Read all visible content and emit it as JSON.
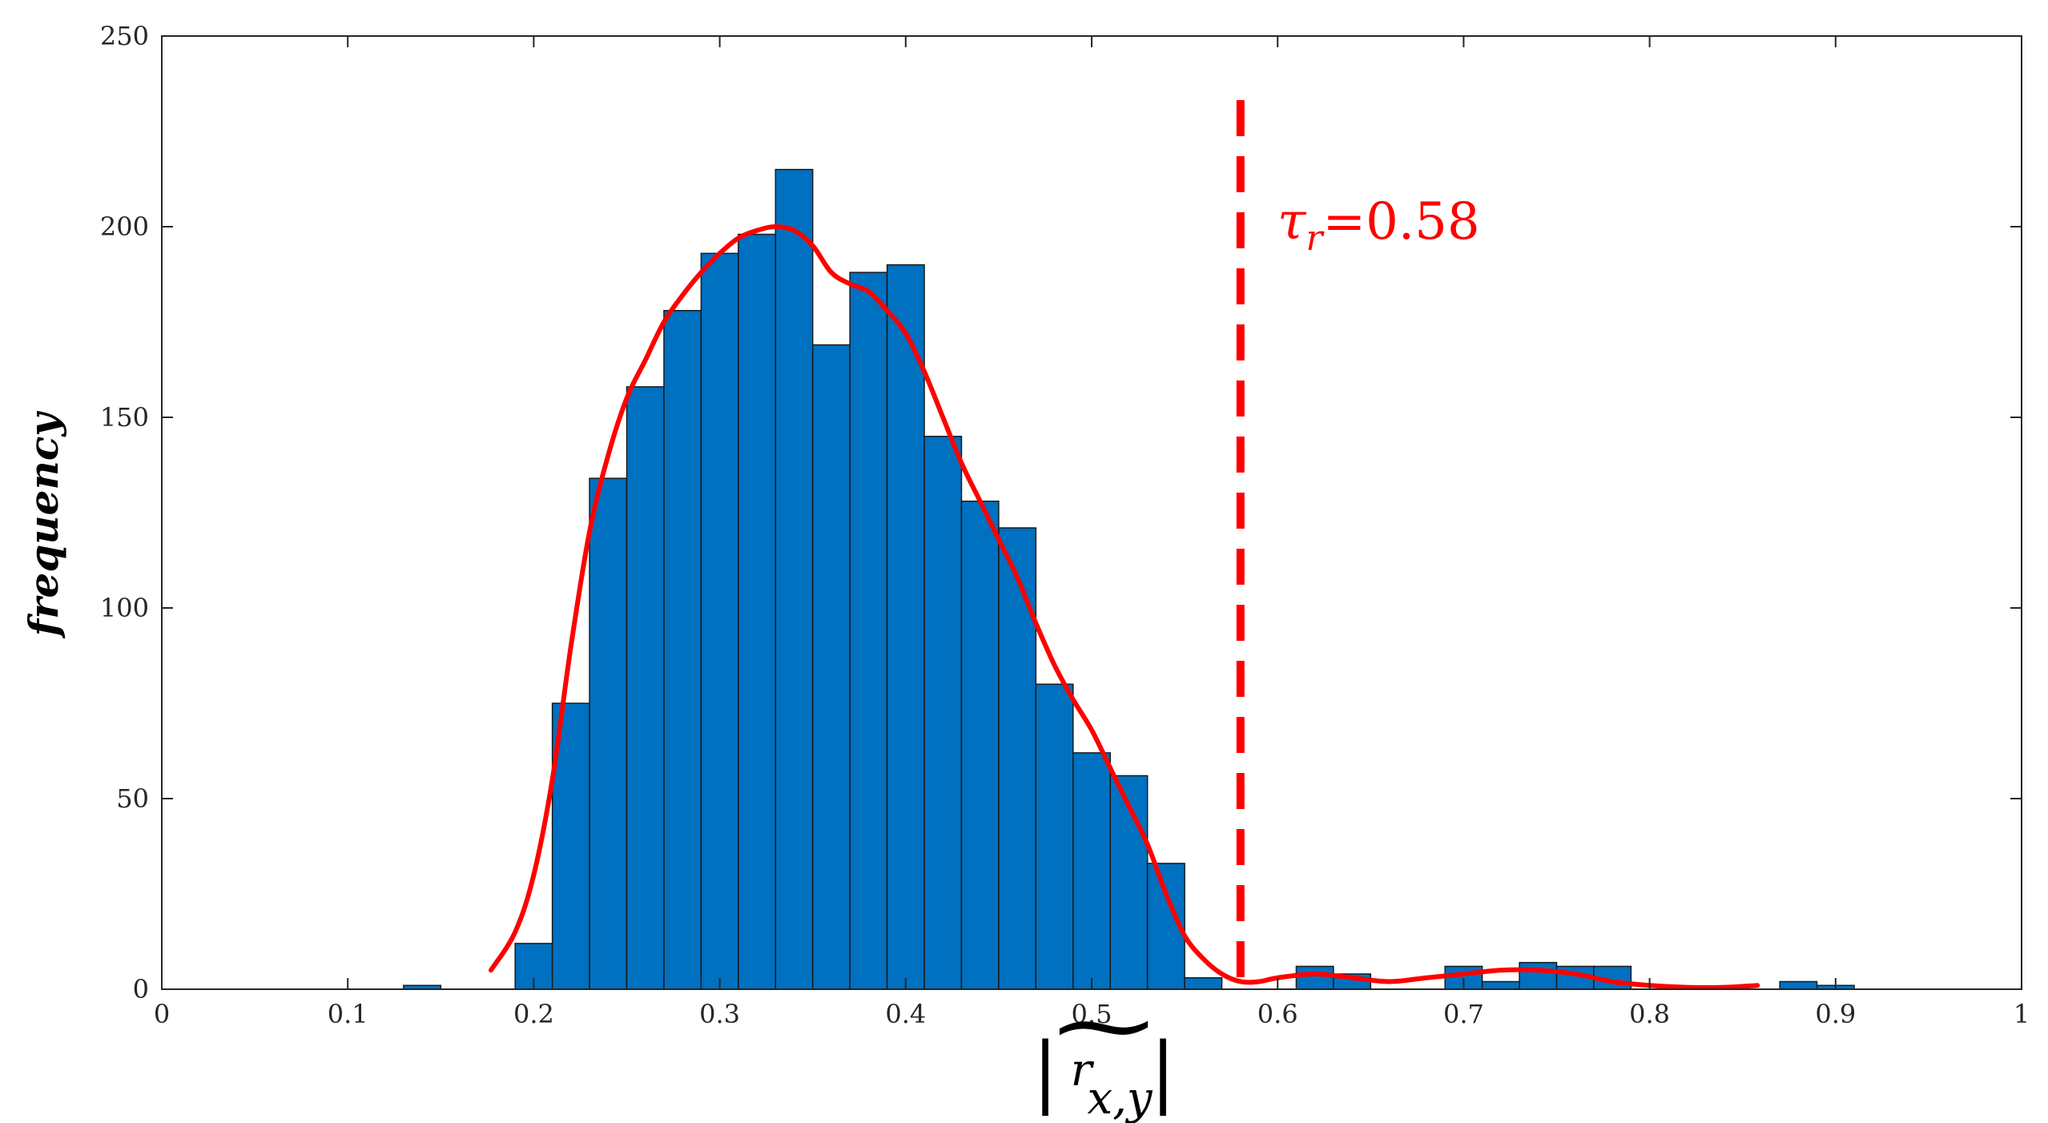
{
  "chart_data": {
    "type": "bar",
    "title": "",
    "xlabel": "|r̃x,y|",
    "xlabel_parts": {
      "bar_left": "|",
      "r": "r",
      "sub": "x,y",
      "tilde": "~",
      "bar_right": "|"
    },
    "ylabel": "frequency",
    "xlim": [
      0,
      1
    ],
    "ylim": [
      0,
      250
    ],
    "xticks": [
      0,
      0.1,
      0.2,
      0.3,
      0.4,
      0.5,
      0.6,
      0.7,
      0.8,
      0.9,
      1
    ],
    "xtick_labels": [
      "0",
      "0.1",
      "0.2",
      "0.3",
      "0.4",
      "0.5",
      "0.6",
      "0.7",
      "0.8",
      "0.9",
      "1"
    ],
    "yticks": [
      0,
      50,
      100,
      150,
      200,
      250
    ],
    "ytick_labels": [
      "0",
      "50",
      "100",
      "150",
      "200",
      "250"
    ],
    "grid": false,
    "bin_width": 0.02,
    "bins": [
      {
        "x0": 0.13,
        "x1": 0.15,
        "count": 1
      },
      {
        "x0": 0.19,
        "x1": 0.21,
        "count": 12
      },
      {
        "x0": 0.21,
        "x1": 0.23,
        "count": 75
      },
      {
        "x0": 0.23,
        "x1": 0.25,
        "count": 134
      },
      {
        "x0": 0.25,
        "x1": 0.27,
        "count": 158
      },
      {
        "x0": 0.27,
        "x1": 0.29,
        "count": 178
      },
      {
        "x0": 0.29,
        "x1": 0.31,
        "count": 193
      },
      {
        "x0": 0.31,
        "x1": 0.33,
        "count": 198
      },
      {
        "x0": 0.33,
        "x1": 0.35,
        "count": 215
      },
      {
        "x0": 0.35,
        "x1": 0.37,
        "count": 169
      },
      {
        "x0": 0.37,
        "x1": 0.39,
        "count": 188
      },
      {
        "x0": 0.39,
        "x1": 0.41,
        "count": 190
      },
      {
        "x0": 0.41,
        "x1": 0.43,
        "count": 145
      },
      {
        "x0": 0.43,
        "x1": 0.45,
        "count": 128
      },
      {
        "x0": 0.45,
        "x1": 0.47,
        "count": 121
      },
      {
        "x0": 0.47,
        "x1": 0.49,
        "count": 80
      },
      {
        "x0": 0.49,
        "x1": 0.51,
        "count": 62
      },
      {
        "x0": 0.51,
        "x1": 0.53,
        "count": 56
      },
      {
        "x0": 0.53,
        "x1": 0.55,
        "count": 33
      },
      {
        "x0": 0.55,
        "x1": 0.57,
        "count": 3
      },
      {
        "x0": 0.61,
        "x1": 0.63,
        "count": 6
      },
      {
        "x0": 0.63,
        "x1": 0.65,
        "count": 4
      },
      {
        "x0": 0.69,
        "x1": 0.71,
        "count": 6
      },
      {
        "x0": 0.71,
        "x1": 0.73,
        "count": 2
      },
      {
        "x0": 0.73,
        "x1": 0.75,
        "count": 7
      },
      {
        "x0": 0.75,
        "x1": 0.77,
        "count": 6
      },
      {
        "x0": 0.77,
        "x1": 0.79,
        "count": 6
      },
      {
        "x0": 0.87,
        "x1": 0.89,
        "count": 2
      },
      {
        "x0": 0.89,
        "x1": 0.91,
        "count": 1
      }
    ],
    "density_curve": {
      "x": [
        0.177,
        0.19,
        0.2,
        0.21,
        0.22,
        0.23,
        0.24,
        0.25,
        0.26,
        0.27,
        0.28,
        0.29,
        0.3,
        0.31,
        0.32,
        0.33,
        0.34,
        0.35,
        0.36,
        0.37,
        0.38,
        0.39,
        0.4,
        0.41,
        0.42,
        0.43,
        0.44,
        0.45,
        0.46,
        0.47,
        0.48,
        0.49,
        0.5,
        0.51,
        0.52,
        0.53,
        0.54,
        0.55,
        0.56,
        0.57,
        0.58,
        0.59,
        0.6,
        0.62,
        0.64,
        0.66,
        0.68,
        0.7,
        0.72,
        0.74,
        0.76,
        0.78,
        0.8,
        0.82,
        0.84,
        0.858
      ],
      "y": [
        5,
        15,
        30,
        55,
        90,
        120,
        140,
        155,
        165,
        175,
        182,
        188,
        193,
        197,
        199,
        200,
        199,
        195,
        188,
        185,
        183,
        178,
        172,
        162,
        150,
        138,
        128,
        118,
        108,
        96,
        85,
        76,
        68,
        58,
        48,
        38,
        25,
        14,
        8,
        4,
        2,
        2,
        3,
        4,
        3,
        2,
        3,
        4,
        5,
        5,
        4,
        2,
        1,
        0.5,
        0.5,
        1
      ],
      "color": "#ff0000"
    },
    "threshold": {
      "x": 0.58,
      "label_symbol": "τ",
      "label_sub": "r",
      "label_value": "=0.58",
      "color": "#ff0000",
      "style": "dashed"
    },
    "bar_color": "#0070c0",
    "bar_edge_color": "#1a1a1a"
  }
}
